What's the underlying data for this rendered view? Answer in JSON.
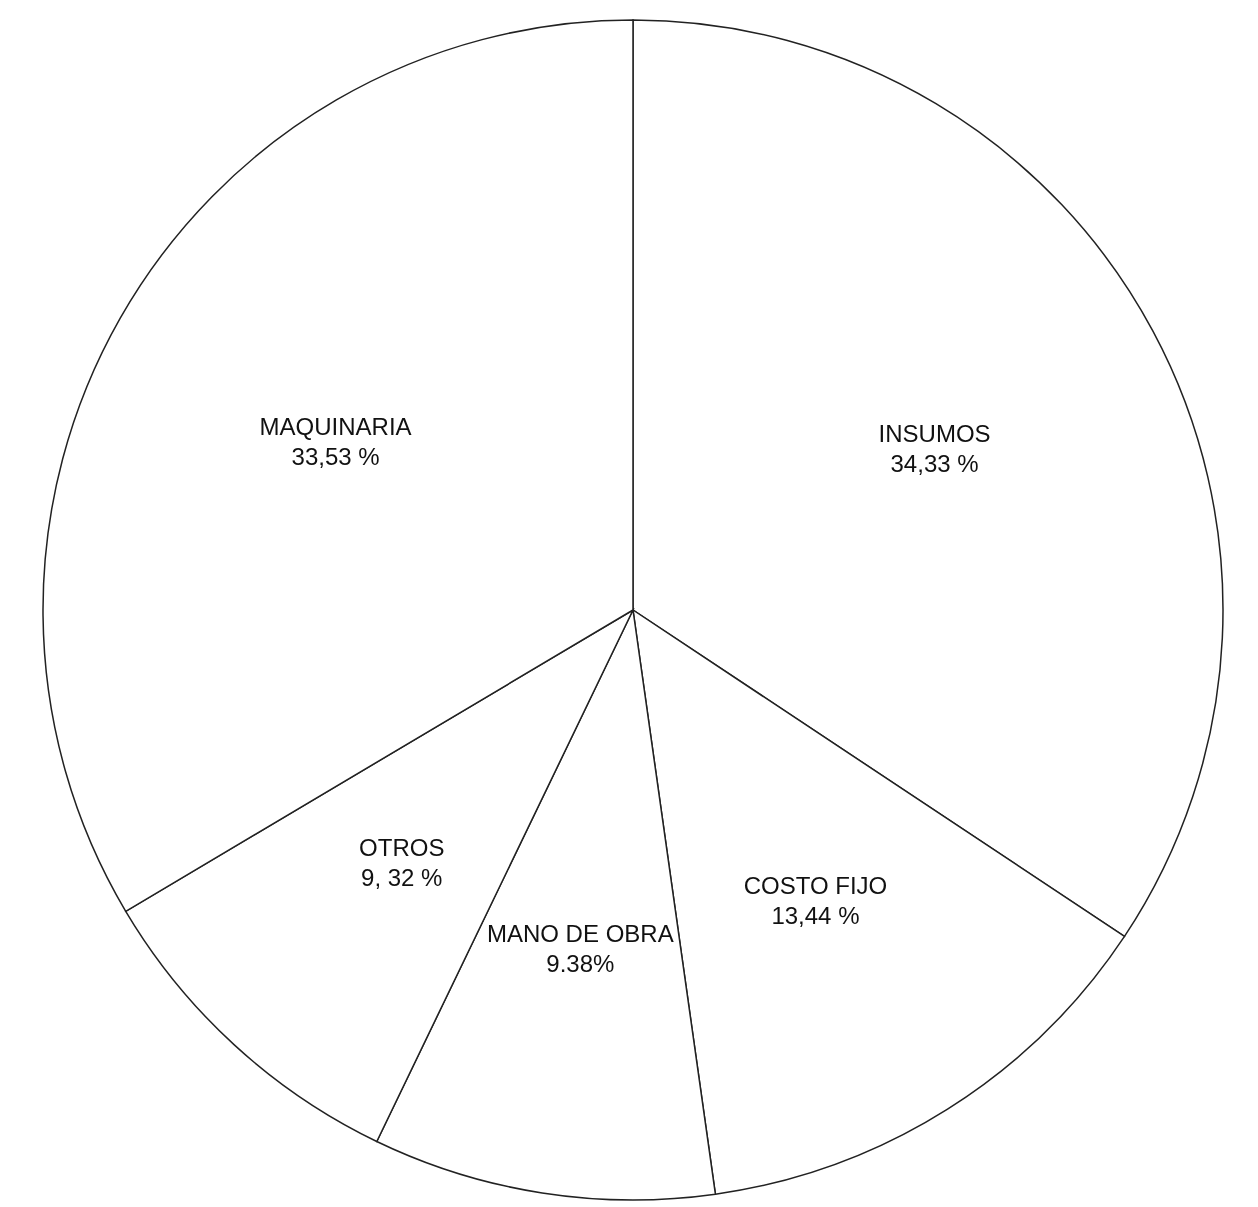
{
  "chart_data": {
    "type": "pie",
    "categories": [
      "INSUMOS",
      "COSTO FIJO",
      "MANO DE OBRA",
      "OTROS",
      "MAQUINARIA"
    ],
    "values": [
      34.33,
      13.44,
      9.38,
      9.32,
      33.53
    ],
    "value_labels": [
      "34,33 %",
      "13,44 %",
      "9.38%",
      "9, 32 %",
      "33,53 %"
    ],
    "colors": [
      "#ffffff",
      "#ffffff",
      "#ffffff",
      "#ffffff",
      "#ffffff"
    ]
  }
}
